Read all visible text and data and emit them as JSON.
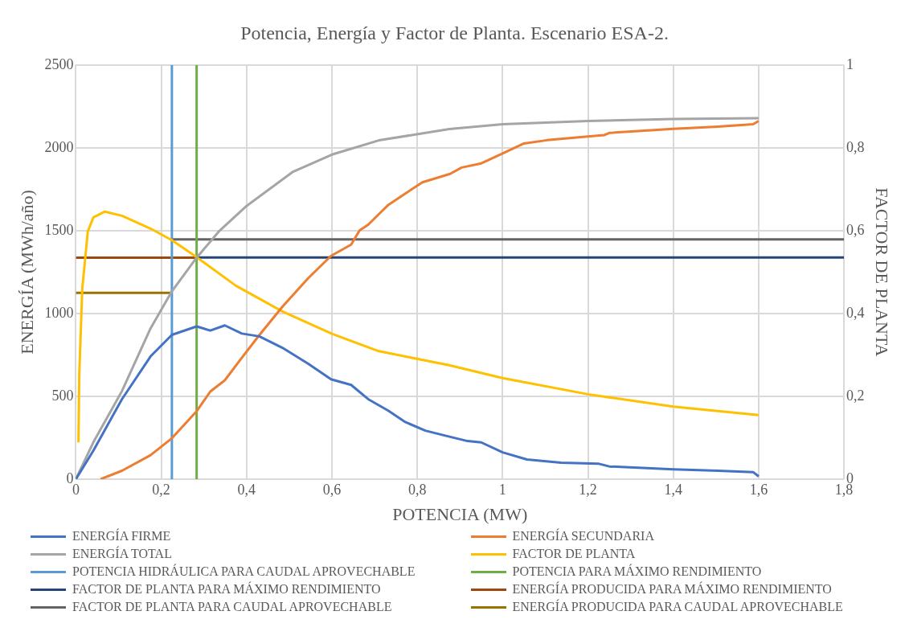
{
  "chart_data": {
    "type": "line",
    "title": "Potencia, Energía y Factor de Planta. Escenario ESA-2.",
    "xlabel": "POTENCIA (MW)",
    "ylabel": "ENERGÍA (MWh/año)",
    "y2label": "FACTOR DE PLANTA",
    "xlim": [
      0,
      1.8
    ],
    "xticks": [
      0,
      {
        "value": 0.2,
        "label": "0,2"
      },
      {
        "value": 0.4,
        "label": "0,4"
      },
      {
        "value": 0.6,
        "label": "0,6"
      },
      {
        "value": 0.8,
        "label": "0,8"
      },
      1,
      {
        "value": 1.2,
        "label": "1,2"
      },
      {
        "value": 1.4,
        "label": "1,4"
      },
      {
        "value": 1.6,
        "label": "1,6"
      },
      {
        "value": 1.8,
        "label": "1,8"
      }
    ],
    "ylim": [
      0,
      2500
    ],
    "yticks": [
      0,
      500,
      1000,
      1500,
      2000,
      2500
    ],
    "y2lim": [
      0,
      1
    ],
    "y2ticks": [
      0,
      {
        "value": 0.2,
        "label": "0,2"
      },
      {
        "value": 0.4,
        "label": "0,4"
      },
      {
        "value": 0.6,
        "label": "0,6"
      },
      {
        "value": 0.8,
        "label": "0,8"
      },
      1
    ],
    "grid": true,
    "legend": "bottom",
    "marker": "none",
    "line_style": "solid",
    "series": [
      {
        "name": "ENERGÍA FIRME",
        "color": "#4472c4",
        "x": [
          0,
          0.041,
          0.108,
          0.175,
          0.225,
          0.283,
          0.315,
          0.349,
          0.389,
          0.43,
          0.484,
          0.544,
          0.598,
          0.645,
          0.685,
          0.732,
          0.772,
          0.819,
          0.864,
          0.918,
          0.95,
          1.0,
          1.057,
          1.137,
          1.224,
          1.25,
          1.4,
          1.505,
          1.587,
          1.6
        ],
        "values": [
          0,
          172,
          483,
          741,
          871,
          922,
          897,
          928,
          879,
          862,
          793,
          698,
          603,
          569,
          483,
          414,
          345,
          293,
          264,
          230,
          222,
          162,
          119,
          99,
          94,
          77,
          60,
          51,
          43,
          17
        ]
      },
      {
        "name": "ENERGÍA SECUNDARIA",
        "color": "#ed7d31",
        "x": [
          0.058,
          0.108,
          0.175,
          0.225,
          0.283,
          0.315,
          0.349,
          0.389,
          0.43,
          0.484,
          0.544,
          0.598,
          0.645,
          0.665,
          0.685,
          0.732,
          0.772,
          0.812,
          0.877,
          0.904,
          0.95,
          1.0,
          1.05,
          1.104,
          1.2,
          1.239,
          1.25,
          1.4,
          1.505,
          1.587,
          1.6
        ],
        "values": [
          0,
          51,
          145,
          247,
          410,
          529,
          597,
          733,
          870,
          1041,
          1212,
          1348,
          1416,
          1502,
          1536,
          1655,
          1724,
          1792,
          1843,
          1881,
          1906,
          1966,
          2026,
          2046,
          2068,
          2077,
          2090,
          2114,
          2128,
          2142,
          2162
        ]
      },
      {
        "name": "ENERGÍA TOTAL",
        "color": "#a5a5a5",
        "x": [
          0,
          0.041,
          0.108,
          0.175,
          0.225,
          0.283,
          0.335,
          0.4,
          0.509,
          0.6,
          0.71,
          0.875,
          1.0,
          1.2,
          1.4,
          1.6
        ],
        "values": [
          0,
          223,
          532,
          910,
          1134,
          1337,
          1495,
          1649,
          1856,
          1959,
          2045,
          2113,
          2142,
          2162,
          2174,
          2179
        ]
      },
      {
        "name": "FACTOR DE PLANTA",
        "color": "#ffc000",
        "axis": "y2",
        "x": [
          0.006,
          0.008,
          0.015,
          0.028,
          0.041,
          0.068,
          0.108,
          0.175,
          0.225,
          0.283,
          0.375,
          0.484,
          0.6,
          0.71,
          0.875,
          1.0,
          1.2,
          1.4,
          1.6
        ],
        "values": [
          0.089,
          0.254,
          0.46,
          0.598,
          0.632,
          0.646,
          0.636,
          0.605,
          0.577,
          0.536,
          0.467,
          0.405,
          0.351,
          0.309,
          0.275,
          0.244,
          0.205,
          0.175,
          0.155
        ]
      },
      {
        "name": "POTENCIA HIDRÁULICA PARA CAUDAL APROVECHABLE",
        "color": "#5b9bd5",
        "x": [
          0.225,
          0.225
        ],
        "values": [
          0,
          2500
        ]
      },
      {
        "name": "POTENCIA PARA MÁXIMO RENDIMIENTO",
        "color": "#70ad47",
        "x": [
          0.283,
          0.283
        ],
        "values": [
          0,
          2500
        ]
      },
      {
        "name": "FACTOR DE PLANTA PARA MÁXIMO RENDIMIENTO",
        "color": "#264478",
        "axis": "y2",
        "x": [
          0.283,
          1.8
        ],
        "values": [
          0.535,
          0.535
        ]
      },
      {
        "name": "ENERGÍA PRODUCIDA PARA MÁXIMO RENDIMIENTO",
        "color": "#9e480e",
        "x": [
          0,
          0.283
        ],
        "values": [
          1337,
          1337
        ]
      },
      {
        "name": "FACTOR DE PLANTA PARA CAUDAL APROVECHABLE",
        "color": "#636363",
        "axis": "y2",
        "x": [
          0.225,
          1.8
        ],
        "values": [
          0.579,
          0.579
        ]
      },
      {
        "name": "ENERGÍA PRODUCIDA PARA CAUDAL APROVECHABLE",
        "color": "#997300",
        "x": [
          0,
          0.225
        ],
        "values": [
          1125,
          1125
        ]
      }
    ]
  }
}
